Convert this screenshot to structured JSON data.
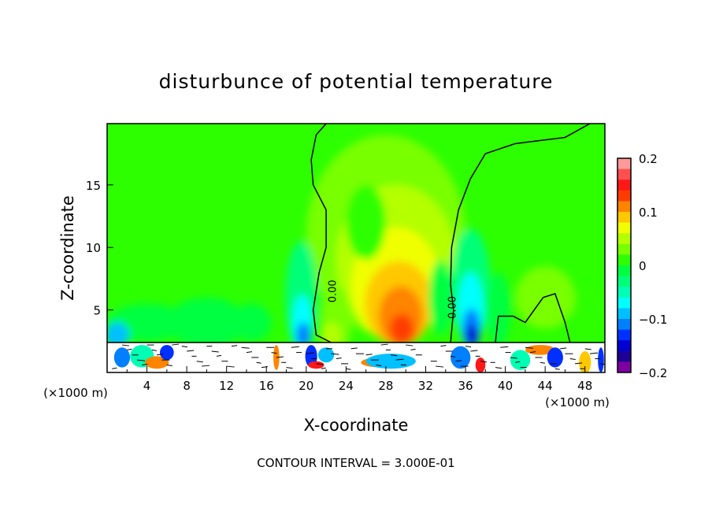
{
  "chart_data": {
    "type": "heatmap",
    "title": "disturbunce of potential temperature",
    "xlabel": "X-coordinate",
    "ylabel": "Z-coordinate",
    "x_unit_left": "(×1000 m)",
    "x_unit_right": "(×1000 m)",
    "xlim": [
      0,
      50
    ],
    "ylim": [
      0,
      19.9
    ],
    "xticks": [
      4,
      8,
      12,
      16,
      20,
      24,
      28,
      32,
      36,
      40,
      44,
      48
    ],
    "yticks": [
      5,
      10,
      15
    ],
    "contour_label": "0.00",
    "footer": "CONTOUR INTERVAL = 3.000E-01",
    "colorbar": {
      "range": [
        -0.2,
        0.2
      ],
      "tick_labels": [
        "0.2",
        "0.1",
        "0",
        "−0.1",
        "−0.2"
      ],
      "tick_values": [
        0.2,
        0.1,
        0,
        -0.1,
        -0.2
      ],
      "colors_top_to_bottom": [
        "#ff9a9a",
        "#ff5050",
        "#ff1818",
        "#ff3c00",
        "#ff8400",
        "#ffc800",
        "#f0ff00",
        "#b4ff00",
        "#78ff00",
        "#2dff00",
        "#00ff40",
        "#00ff78",
        "#00ffb4",
        "#00ffff",
        "#00c0ff",
        "#0080ff",
        "#0030ff",
        "#0000d0",
        "#1e0096",
        "#7d00a0"
      ]
    },
    "features": [
      {
        "name": "warm-plume",
        "x": 29.5,
        "z": 4,
        "peak_value": 0.14
      },
      {
        "name": "cool-column-left",
        "x": 19.5,
        "z": 4,
        "peak_value": -0.12
      },
      {
        "name": "cool-column-right",
        "x": 36.5,
        "z": 4,
        "peak_value": -0.15
      },
      {
        "name": "cool-patch-west",
        "x": 10,
        "z": 5,
        "peak_value": -0.04
      }
    ]
  }
}
